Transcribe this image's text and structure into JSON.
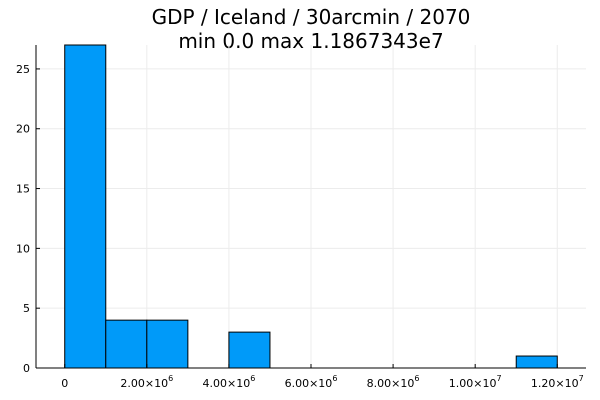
{
  "chart_data": {
    "type": "bar",
    "title_line1": "GDP / Iceland / 30arcmin / 2070",
    "title_line2": "min 0.0  max 1.1867343e7",
    "xlabel": "",
    "ylabel": "",
    "bins": [
      {
        "start": 0,
        "end": 1000000,
        "count": 27
      },
      {
        "start": 1000000,
        "end": 2000000,
        "count": 4
      },
      {
        "start": 2000000,
        "end": 3000000,
        "count": 4
      },
      {
        "start": 3000000,
        "end": 4000000,
        "count": 0
      },
      {
        "start": 4000000,
        "end": 5000000,
        "count": 3
      },
      {
        "start": 5000000,
        "end": 6000000,
        "count": 0
      },
      {
        "start": 6000000,
        "end": 7000000,
        "count": 0
      },
      {
        "start": 7000000,
        "end": 8000000,
        "count": 0
      },
      {
        "start": 8000000,
        "end": 9000000,
        "count": 0
      },
      {
        "start": 9000000,
        "end": 10000000,
        "count": 0
      },
      {
        "start": 10000000,
        "end": 11000000,
        "count": 0
      },
      {
        "start": 11000000,
        "end": 12000000,
        "count": 1
      }
    ],
    "xlim": [
      -700000,
      12700000
    ],
    "ylim": [
      0,
      27
    ],
    "x_ticks": [
      {
        "value": 0,
        "mantissa": "0",
        "exponent": ""
      },
      {
        "value": 2000000,
        "mantissa": "2.00×10",
        "exponent": "6"
      },
      {
        "value": 4000000,
        "mantissa": "4.00×10",
        "exponent": "6"
      },
      {
        "value": 6000000,
        "mantissa": "6.00×10",
        "exponent": "6"
      },
      {
        "value": 8000000,
        "mantissa": "8.00×10",
        "exponent": "6"
      },
      {
        "value": 10000000,
        "mantissa": "1.00×10",
        "exponent": "7"
      },
      {
        "value": 12000000,
        "mantissa": "1.20×10",
        "exponent": "7"
      }
    ],
    "y_ticks": [
      {
        "value": 0,
        "label": "0"
      },
      {
        "value": 5,
        "label": "5"
      },
      {
        "value": 10,
        "label": "10"
      },
      {
        "value": 15,
        "label": "15"
      },
      {
        "value": 20,
        "label": "20"
      },
      {
        "value": 25,
        "label": "25"
      }
    ],
    "grid": true,
    "legend": "none",
    "colors": {
      "bar_fill": "#009af9",
      "bar_stroke": "#000000",
      "grid": "#ececec",
      "axis": "#000000"
    }
  }
}
